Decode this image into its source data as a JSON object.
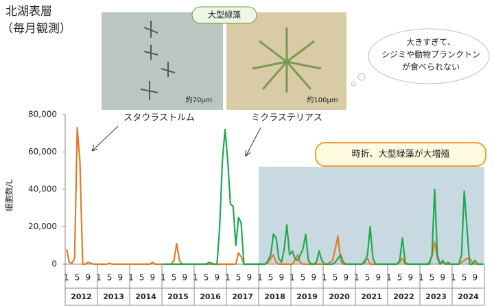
{
  "chart_data": {
    "type": "line",
    "title": "北湖表層",
    "subtitle": "（毎月観測）",
    "y_label": "細胞数/L",
    "ylim": [
      0,
      80000
    ],
    "yticks": [
      0,
      {
        "value": 20000,
        "label": "20,000"
      },
      {
        "value": 40000,
        "label": "40,000"
      },
      {
        "value": 60000,
        "label": "60,000"
      },
      {
        "value": 80000,
        "label": "80,000"
      }
    ],
    "years": [
      2012,
      2013,
      2014,
      2015,
      2016,
      2017,
      2018,
      2019,
      2020,
      2021,
      2022,
      2023,
      2024
    ],
    "month_ticks": [
      1,
      5,
      9
    ],
    "shade_from_year": 2018,
    "series": [
      {
        "name": "スタウラストルム",
        "color": "#e07b29",
        "values": [
          8000,
          1000,
          500,
          3000,
          73000,
          55000,
          0,
          0,
          1000,
          500,
          0,
          0,
          0,
          0,
          0,
          0,
          500,
          0,
          0,
          0,
          0,
          0,
          0,
          0,
          0,
          0,
          0,
          0,
          0,
          0,
          0,
          0,
          1000,
          0,
          0,
          0,
          0,
          0,
          0,
          0,
          2000,
          11000,
          2000,
          0,
          0,
          0,
          0,
          0,
          0,
          0,
          0,
          0,
          0,
          0,
          0,
          0,
          0,
          0,
          0,
          0,
          0,
          0,
          0,
          0,
          6000,
          4000,
          0,
          0,
          0,
          0,
          0,
          0,
          0,
          0,
          0,
          1000,
          3000,
          5000,
          1000,
          0,
          0,
          0,
          0,
          0,
          0,
          2000,
          5000,
          1000,
          0,
          0,
          0,
          0,
          0,
          0,
          0,
          0,
          0,
          0,
          1000,
          2000,
          8000,
          15000,
          2000,
          0,
          0,
          0,
          0,
          0,
          0,
          0,
          0,
          2000,
          3000,
          0,
          0,
          0,
          0,
          0,
          0,
          0,
          0,
          0,
          0,
          0,
          1000,
          3000,
          0,
          0,
          0,
          0,
          0,
          0,
          0,
          0,
          0,
          1000,
          4000,
          12000,
          3000,
          0,
          1000,
          0,
          0,
          0,
          0,
          0,
          0,
          1000,
          2000,
          3000,
          3000,
          1000,
          0,
          0,
          0,
          0
        ]
      },
      {
        "name": "ミクラステリアス",
        "color": "#1fa84f",
        "values": [
          null,
          null,
          null,
          null,
          null,
          null,
          null,
          null,
          null,
          null,
          null,
          null,
          null,
          null,
          null,
          null,
          null,
          null,
          null,
          null,
          null,
          null,
          null,
          null,
          null,
          null,
          null,
          null,
          null,
          null,
          null,
          null,
          null,
          null,
          null,
          null,
          0,
          0,
          0,
          0,
          0,
          0,
          0,
          0,
          0,
          0,
          0,
          0,
          0,
          0,
          0,
          0,
          0,
          1000,
          500,
          0,
          0,
          20000,
          55000,
          72000,
          55000,
          32000,
          31000,
          10000,
          25000,
          22000,
          0,
          0,
          0,
          0,
          0,
          0,
          0,
          0,
          0,
          2000,
          5000,
          16000,
          14000,
          3000,
          1000,
          8000,
          21000,
          5000,
          7000,
          3000,
          2000,
          5000,
          8000,
          16000,
          2000,
          0,
          0,
          1000,
          7000,
          2000,
          0,
          0,
          0,
          0,
          1000,
          3000,
          5000,
          1000,
          0,
          0,
          0,
          0,
          0,
          0,
          0,
          1000,
          5000,
          20000,
          3000,
          0,
          0,
          0,
          0,
          0,
          0,
          0,
          0,
          0,
          2000,
          14000,
          1000,
          0,
          0,
          0,
          0,
          0,
          0,
          0,
          0,
          0,
          5000,
          40000,
          5000,
          0,
          2000,
          0,
          1000,
          0,
          0,
          0,
          0,
          5000,
          39000,
          20000,
          0,
          0,
          2000,
          0,
          0,
          0
        ]
      }
    ],
    "photo_header": "大型緑藻",
    "photo_labels": [
      "約70μm",
      "約100μm"
    ],
    "bubble_lines": [
      "大きすぎて、",
      "シジミや動物プランクトン",
      "が食べられない"
    ],
    "highlight_note": "時折、大型緑藻が大増殖"
  }
}
